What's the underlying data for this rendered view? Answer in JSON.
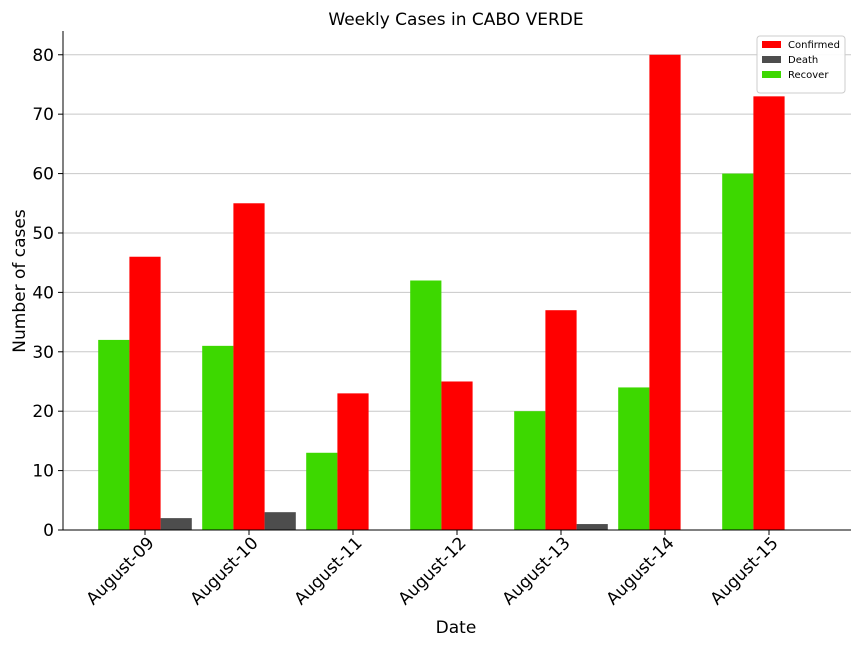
{
  "chart_data": {
    "type": "bar",
    "title": "Weekly Cases in CABO VERDE",
    "xlabel": "Date",
    "ylabel": "Number of cases",
    "categories": [
      "August-09",
      "August-10",
      "August-11",
      "August-12",
      "August-13",
      "August-14",
      "August-15"
    ],
    "series": [
      {
        "name": "Recover",
        "color": "#3dd800",
        "values": [
          32,
          31,
          13,
          42,
          20,
          24,
          60
        ]
      },
      {
        "name": "Confirmed",
        "color": "#ff0000",
        "values": [
          46,
          55,
          23,
          25,
          37,
          80,
          73
        ]
      },
      {
        "name": "Death",
        "color": "#4d4d4d",
        "values": [
          2,
          3,
          0,
          0,
          1,
          0,
          0
        ]
      }
    ],
    "legend_order": [
      "Confirmed",
      "Death",
      "Recover"
    ],
    "ylim": [
      0,
      84
    ],
    "yticks": [
      0,
      10,
      20,
      30,
      40,
      50,
      60,
      70,
      80
    ],
    "grid": "horizontal",
    "legend_position": "top-right"
  }
}
